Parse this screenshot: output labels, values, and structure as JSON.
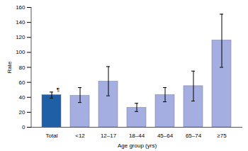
{
  "chart_data": {
    "type": "bar",
    "categories": [
      "Total",
      "<12",
      "12–17",
      "18–44",
      "45–64",
      "65–74",
      "≥75"
    ],
    "values": [
      43,
      42,
      61,
      26,
      43,
      55,
      116
    ],
    "error_low": [
      39,
      33,
      42,
      21,
      34,
      35,
      80
    ],
    "error_high": [
      47,
      53,
      81,
      32,
      53,
      75,
      151
    ],
    "colors": [
      "#1f5fa6",
      "#a4aee0",
      "#a4aee0",
      "#a4aee0",
      "#a4aee0",
      "#a4aee0",
      "#a4aee0"
    ],
    "x_label": "Age group (yrs)",
    "y_label": "Rate",
    "ylim": [
      0,
      160
    ],
    "yticks": [
      0,
      20,
      40,
      60,
      80,
      100,
      120,
      140,
      160
    ],
    "annotations": [
      {
        "text": "¶",
        "category": "Total"
      }
    ],
    "grid": false
  }
}
